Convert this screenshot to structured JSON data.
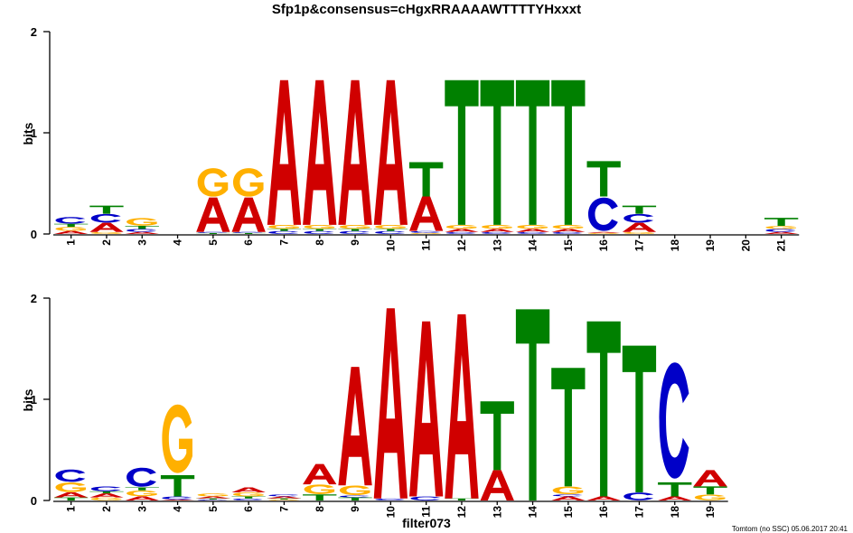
{
  "title": "Sfp1p&consensus=cHgxRRAAAAWTTTTYHxxxt",
  "footer": "Tomtom (no SSC) 05.06.2017 20:41",
  "colors": {
    "A": "#d00000",
    "C": "#0000c8",
    "G": "#ffb000",
    "T": "#008000"
  },
  "chart_data": [
    {
      "type": "sequence-logo",
      "title": "Sfp1p&consensus=cHgxRRAAAAWTTTTYHxxxt",
      "xlabel": "",
      "ylabel": "bits",
      "ylim": [
        0,
        2
      ],
      "yticks": [
        "0",
        "1",
        "2"
      ],
      "positions": [
        "1",
        "2",
        "3",
        "4",
        "5",
        "6",
        "7",
        "8",
        "9",
        "10",
        "11",
        "12",
        "13",
        "14",
        "15",
        "16",
        "17",
        "18",
        "19",
        "20",
        "21"
      ],
      "stacks": [
        [
          [
            "A",
            0.03
          ],
          [
            "G",
            0.04
          ],
          [
            "T",
            0.03
          ],
          [
            "C",
            0.07
          ]
        ],
        [
          [
            "G",
            0.02
          ],
          [
            "A",
            0.09
          ],
          [
            "C",
            0.09
          ],
          [
            "T",
            0.08
          ]
        ],
        [
          [
            "A",
            0.02
          ],
          [
            "C",
            0.03
          ],
          [
            "T",
            0.03
          ],
          [
            "G",
            0.08
          ]
        ],
        [],
        [
          [
            "T",
            0.01
          ],
          [
            "C",
            0.01
          ],
          [
            "A",
            0.34
          ],
          [
            "G",
            0.3
          ]
        ],
        [
          [
            "T",
            0.01
          ],
          [
            "C",
            0.01
          ],
          [
            "A",
            0.34
          ],
          [
            "G",
            0.3
          ]
        ],
        [
          [
            "C",
            0.03
          ],
          [
            "T",
            0.02
          ],
          [
            "G",
            0.04
          ],
          [
            "A",
            1.43
          ]
        ],
        [
          [
            "C",
            0.03
          ],
          [
            "T",
            0.02
          ],
          [
            "G",
            0.04
          ],
          [
            "A",
            1.43
          ]
        ],
        [
          [
            "C",
            0.03
          ],
          [
            "T",
            0.02
          ],
          [
            "G",
            0.04
          ],
          [
            "A",
            1.43
          ]
        ],
        [
          [
            "C",
            0.03
          ],
          [
            "T",
            0.02
          ],
          [
            "G",
            0.04
          ],
          [
            "A",
            1.43
          ]
        ],
        [
          [
            "G",
            0.01
          ],
          [
            "C",
            0.02
          ],
          [
            "A",
            0.34
          ],
          [
            "T",
            0.34
          ]
        ],
        [
          [
            "C",
            0.02
          ],
          [
            "A",
            0.03
          ],
          [
            "G",
            0.04
          ],
          [
            "T",
            1.43
          ]
        ],
        [
          [
            "C",
            0.02
          ],
          [
            "A",
            0.03
          ],
          [
            "G",
            0.04
          ],
          [
            "T",
            1.43
          ]
        ],
        [
          [
            "C",
            0.02
          ],
          [
            "A",
            0.03
          ],
          [
            "G",
            0.04
          ],
          [
            "T",
            1.43
          ]
        ],
        [
          [
            "C",
            0.02
          ],
          [
            "A",
            0.03
          ],
          [
            "G",
            0.04
          ],
          [
            "T",
            1.43
          ]
        ],
        [
          [
            "G",
            0.01
          ],
          [
            "A",
            0.01
          ],
          [
            "C",
            0.35
          ],
          [
            "T",
            0.35
          ]
        ],
        [
          [
            "G",
            0.02
          ],
          [
            "A",
            0.09
          ],
          [
            "C",
            0.09
          ],
          [
            "T",
            0.08
          ]
        ],
        [],
        [],
        [],
        [
          [
            "A",
            0.02
          ],
          [
            "C",
            0.03
          ],
          [
            "G",
            0.03
          ],
          [
            "T",
            0.08
          ]
        ]
      ]
    },
    {
      "type": "sequence-logo",
      "title": "",
      "xlabel": "filter073",
      "ylabel": "bits",
      "ylim": [
        0,
        2
      ],
      "yticks": [
        "0",
        "1",
        "2"
      ],
      "positions": [
        "1",
        "2",
        "3",
        "4",
        "5",
        "6",
        "7",
        "8",
        "9",
        "10",
        "11",
        "12",
        "13",
        "14",
        "15",
        "16",
        "17",
        "18",
        "19"
      ],
      "stacks": [
        [
          [
            "T",
            0.03
          ],
          [
            "A",
            0.05
          ],
          [
            "G",
            0.1
          ],
          [
            "C",
            0.13
          ]
        ],
        [
          [
            "G",
            0.03
          ],
          [
            "A",
            0.04
          ],
          [
            "T",
            0.02
          ],
          [
            "C",
            0.05
          ]
        ],
        [
          [
            "A",
            0.04
          ],
          [
            "G",
            0.06
          ],
          [
            "T",
            0.03
          ],
          [
            "C",
            0.2
          ]
        ],
        [
          [
            "A",
            0.01
          ],
          [
            "C",
            0.03
          ],
          [
            "T",
            0.21
          ],
          [
            "G",
            0.72
          ]
        ],
        [
          [
            "C",
            0.01
          ],
          [
            "T",
            0.01
          ],
          [
            "A",
            0.02
          ],
          [
            "G",
            0.03
          ]
        ],
        [
          [
            "C",
            0.02
          ],
          [
            "T",
            0.02
          ],
          [
            "G",
            0.04
          ],
          [
            "A",
            0.05
          ]
        ],
        [
          [
            "G",
            0.01
          ],
          [
            "T",
            0.01
          ],
          [
            "A",
            0.02
          ],
          [
            "C",
            0.02
          ]
        ],
        [
          [
            "T",
            0.06
          ],
          [
            "G",
            0.1
          ],
          [
            "A",
            0.2
          ]
        ],
        [
          [
            "T",
            0.03
          ],
          [
            "C",
            0.02
          ],
          [
            "G",
            0.1
          ],
          [
            "A",
            1.17
          ]
        ],
        [
          [
            "C",
            0.02
          ],
          [
            "A",
            1.88
          ]
        ],
        [
          [
            "C",
            0.04
          ],
          [
            "A",
            1.73
          ]
        ],
        [
          [
            "T",
            0.02
          ],
          [
            "A",
            1.82
          ]
        ],
        [
          [
            "A",
            0.3
          ],
          [
            "T",
            0.68
          ]
        ],
        [
          [
            "T",
            1.89
          ]
        ],
        [
          [
            "A",
            0.04
          ],
          [
            "C",
            0.02
          ],
          [
            "G",
            0.08
          ],
          [
            "T",
            1.17
          ]
        ],
        [
          [
            "A",
            0.04
          ],
          [
            "T",
            1.73
          ]
        ],
        [
          [
            "C",
            0.08
          ],
          [
            "T",
            1.45
          ]
        ],
        [
          [
            "A",
            0.04
          ],
          [
            "T",
            0.14
          ],
          [
            "C",
            1.22
          ]
        ],
        [
          [
            "G",
            0.06
          ],
          [
            "T",
            0.08
          ],
          [
            "A",
            0.16
          ]
        ]
      ]
    }
  ]
}
